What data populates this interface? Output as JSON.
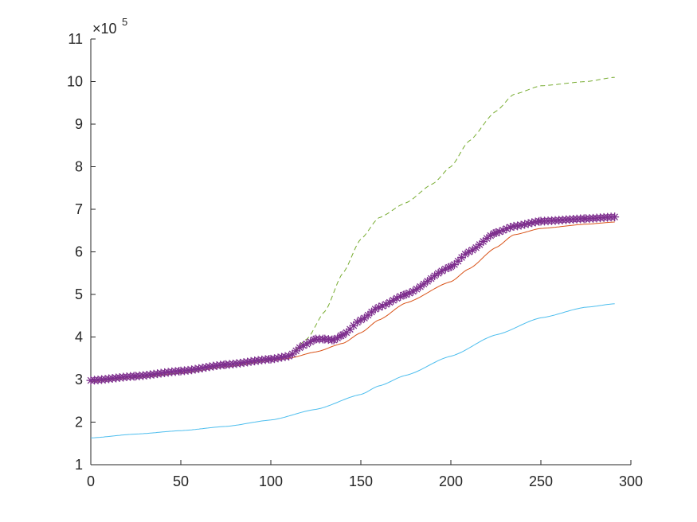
{
  "chart_data": {
    "type": "line",
    "xlim": [
      0,
      300
    ],
    "ylim": [
      1,
      11
    ],
    "y_scale_note": "×10^5",
    "y_multiplier": {
      "base": "10",
      "exponent": "5",
      "prefix": "×"
    },
    "x_ticks": [
      {
        "value": 0,
        "label": "0"
      },
      {
        "value": 50,
        "label": "50"
      },
      {
        "value": 100,
        "label": "100"
      },
      {
        "value": 150,
        "label": "150"
      },
      {
        "value": 200,
        "label": "200"
      },
      {
        "value": 250,
        "label": "250"
      },
      {
        "value": 300,
        "label": "300"
      }
    ],
    "y_ticks": [
      {
        "value": 1,
        "label": "1"
      },
      {
        "value": 2,
        "label": "2"
      },
      {
        "value": 3,
        "label": "3"
      },
      {
        "value": 4,
        "label": "4"
      },
      {
        "value": 5,
        "label": "5"
      },
      {
        "value": 6,
        "label": "6"
      },
      {
        "value": 7,
        "label": "7"
      },
      {
        "value": 8,
        "label": "8"
      },
      {
        "value": 9,
        "label": "9"
      },
      {
        "value": 10,
        "label": "10"
      },
      {
        "value": 11,
        "label": "11"
      }
    ],
    "grid": false,
    "legend": "none",
    "series": [
      {
        "color": "#D95319",
        "style": "solid",
        "x": [
          0,
          25,
          50,
          75,
          100,
          110,
          125,
          140,
          150,
          160,
          175,
          200,
          210,
          225,
          235,
          250,
          275,
          291
        ],
        "y": [
          2.95,
          3.05,
          3.15,
          3.3,
          3.45,
          3.5,
          3.65,
          3.85,
          4.1,
          4.4,
          4.8,
          5.3,
          5.6,
          6.1,
          6.4,
          6.55,
          6.65,
          6.7
        ]
      },
      {
        "color": "#77AC30",
        "style": "dashed",
        "x": [
          0,
          25,
          50,
          75,
          100,
          110,
          120,
          130,
          140,
          150,
          160,
          175,
          190,
          200,
          210,
          225,
          235,
          250,
          275,
          291
        ],
        "y": [
          2.95,
          3.05,
          3.15,
          3.3,
          3.45,
          3.55,
          3.95,
          4.6,
          5.5,
          6.3,
          6.8,
          7.15,
          7.6,
          8.0,
          8.6,
          9.3,
          9.7,
          9.9,
          10.0,
          10.1
        ]
      },
      {
        "color": "#7E2F8E",
        "style": "marker-asterisk",
        "x": [
          0,
          25,
          50,
          75,
          100,
          110,
          118,
          125,
          130,
          135,
          140,
          150,
          160,
          175,
          200,
          210,
          225,
          235,
          250,
          275,
          291
        ],
        "y": [
          2.98,
          3.08,
          3.2,
          3.35,
          3.48,
          3.55,
          3.8,
          3.95,
          3.95,
          3.93,
          4.05,
          4.4,
          4.7,
          5.0,
          5.65,
          6.0,
          6.45,
          6.6,
          6.72,
          6.78,
          6.82
        ]
      },
      {
        "color": "#4DBEEE",
        "style": "solid",
        "x": [
          0,
          25,
          50,
          75,
          100,
          125,
          150,
          160,
          175,
          200,
          225,
          250,
          275,
          291
        ],
        "y": [
          1.63,
          1.72,
          1.8,
          1.9,
          2.05,
          2.3,
          2.65,
          2.85,
          3.1,
          3.55,
          4.05,
          4.45,
          4.7,
          4.78
        ]
      }
    ]
  }
}
